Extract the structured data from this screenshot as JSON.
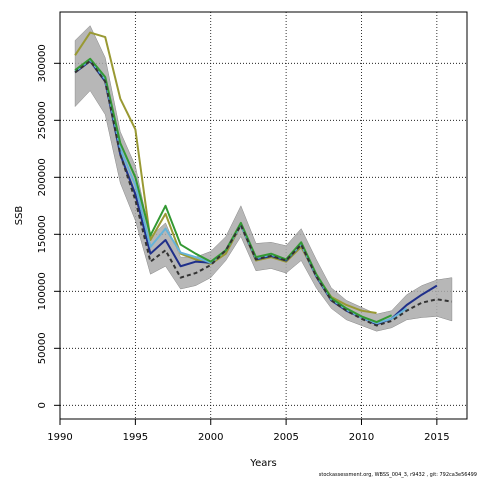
{
  "chart_data": {
    "type": "line",
    "title": "",
    "xlabel": "Years",
    "ylabel": "SSB",
    "xlim": [
      1990,
      2017
    ],
    "ylim": [
      -12000,
      345000
    ],
    "x_ticks": [
      1990,
      1995,
      2000,
      2005,
      2010,
      2015
    ],
    "y_ticks": [
      0,
      50000,
      100000,
      150000,
      200000,
      250000,
      300000
    ],
    "grid": true,
    "band": {
      "x": [
        1991,
        1992,
        1993,
        1994,
        1995,
        1996,
        1997,
        1998,
        1999,
        2000,
        2001,
        2002,
        2003,
        2004,
        2005,
        2006,
        2007,
        2008,
        2009,
        2010,
        2011,
        2012,
        2013,
        2014,
        2015,
        2016
      ],
      "upper": [
        320000,
        333000,
        305000,
        240000,
        210000,
        148000,
        160000,
        130000,
        130000,
        135000,
        148000,
        175000,
        142000,
        143000,
        140000,
        155000,
        128000,
        103000,
        92000,
        86000,
        80000,
        83000,
        97000,
        105000,
        110000,
        112000
      ],
      "lower": [
        262000,
        276000,
        255000,
        195000,
        162000,
        115000,
        122000,
        102000,
        105000,
        112000,
        127000,
        148000,
        118000,
        120000,
        116000,
        127000,
        103000,
        85000,
        75000,
        70000,
        65000,
        68000,
        75000,
        77000,
        78000,
        74000
      ]
    },
    "series": [
      {
        "color": "#999933",
        "dash": false,
        "x": [
          1991,
          1992,
          1993,
          1994,
          1995,
          1996,
          1997,
          1998,
          1999,
          2000,
          2001,
          2002,
          2003,
          2004,
          2005,
          2006,
          2007,
          2008,
          2009,
          2010,
          2011
        ],
        "values": [
          307000,
          327000,
          323000,
          269000,
          242000,
          145000,
          168000,
          133000,
          128000,
          124000,
          133000,
          158000,
          127000,
          130000,
          126000,
          139000,
          114000,
          95000,
          88000,
          83000,
          81000
        ]
      },
      {
        "color": "#1f2f8a",
        "dash": false,
        "x": [
          1991,
          1992,
          1993,
          1994,
          1995,
          1996,
          1997,
          1998,
          1999,
          2000,
          2001,
          2002,
          2003,
          2004,
          2005,
          2006,
          2007,
          2008,
          2009,
          2010,
          2011,
          2012,
          2013,
          2014,
          2015
        ],
        "values": [
          292000,
          302000,
          284000,
          220000,
          185000,
          133000,
          145000,
          122000,
          126000,
          125000,
          136000,
          158000,
          128000,
          131000,
          127000,
          141000,
          113000,
          92000,
          83000,
          77000,
          71000,
          76000,
          88000,
          97000,
          105000
        ]
      },
      {
        "color": "#66b3d9",
        "dash": false,
        "x": [
          1991,
          1992,
          1993,
          1994,
          1995,
          1996,
          1997,
          1998,
          1999,
          2000,
          2001,
          2002,
          2003,
          2004,
          2005,
          2006,
          2007,
          2008,
          2009,
          2010,
          2011,
          2012,
          2013
        ],
        "values": [
          293000,
          303000,
          286000,
          225000,
          193000,
          139000,
          155000,
          134000,
          130000,
          125000,
          136000,
          158000,
          129000,
          132000,
          128000,
          141000,
          114000,
          93000,
          84000,
          77000,
          72000,
          76000,
          85000
        ]
      },
      {
        "color": "#339933",
        "dash": false,
        "x": [
          1991,
          1992,
          1993,
          1994,
          1995,
          1996,
          1997,
          1998,
          1999,
          2000,
          2001,
          2002,
          2003,
          2004,
          2005,
          2006,
          2007,
          2008,
          2009,
          2010,
          2011,
          2012
        ],
        "values": [
          294000,
          304000,
          288000,
          230000,
          200000,
          149000,
          175000,
          141000,
          133000,
          126000,
          136000,
          160000,
          130000,
          133000,
          128000,
          143000,
          115000,
          94000,
          85000,
          78000,
          73000,
          79000
        ]
      },
      {
        "color": "#333333",
        "dash": true,
        "x": [
          1991,
          1992,
          1993,
          1994,
          1995,
          1996,
          1997,
          1998,
          1999,
          2000,
          2001,
          2002,
          2003,
          2004,
          2005,
          2006,
          2007,
          2008,
          2009,
          2010,
          2011,
          2012,
          2013,
          2014,
          2015,
          2016
        ],
        "values": [
          292000,
          302000,
          284000,
          220000,
          180000,
          126000,
          136000,
          112000,
          116000,
          123000,
          136000,
          158000,
          128000,
          131000,
          127000,
          141000,
          113000,
          92000,
          83000,
          76000,
          70000,
          74000,
          83000,
          90000,
          93000,
          91000
        ]
      }
    ],
    "footer": "stockassessment.org, WBSS_004_3, r9432 , git: 792ca3e56499"
  }
}
